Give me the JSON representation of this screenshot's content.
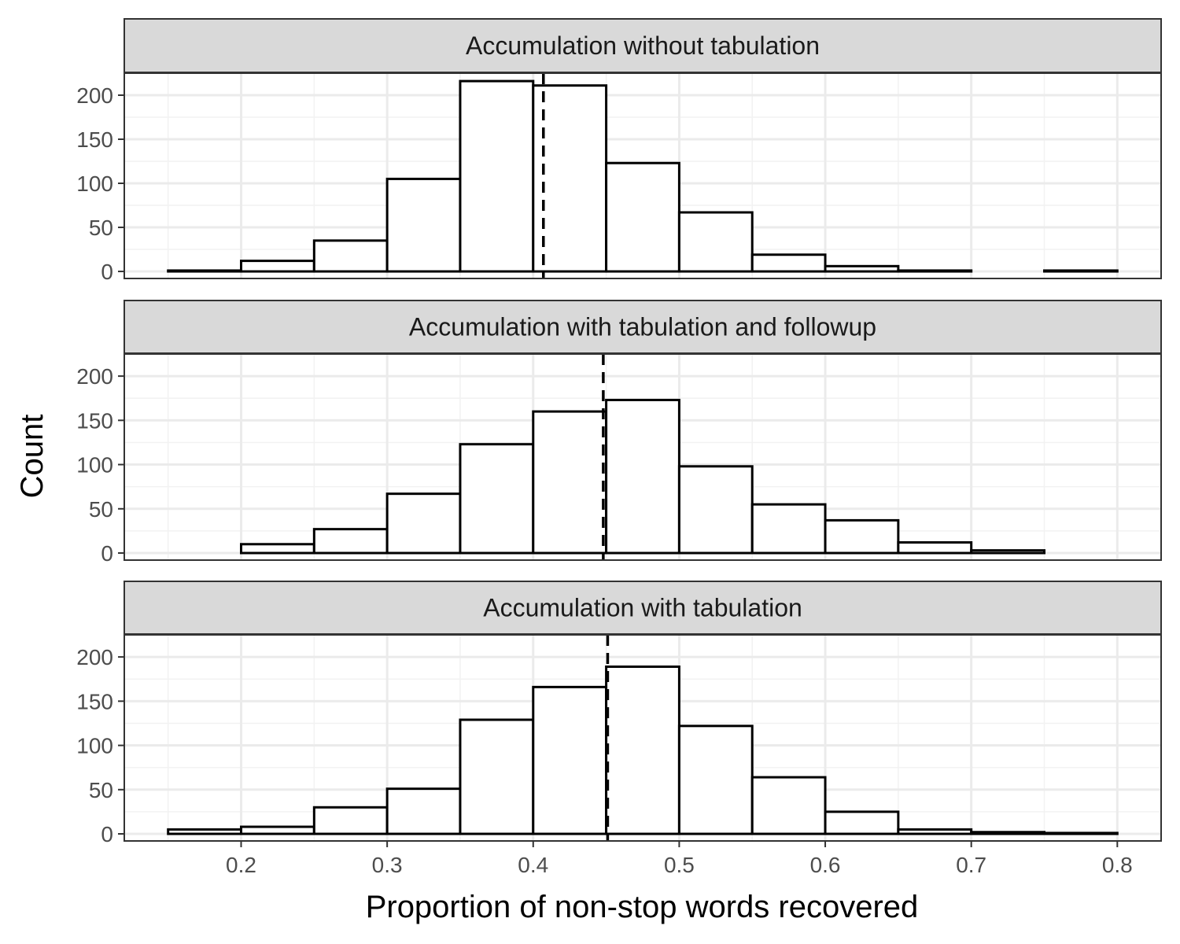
{
  "chart_data": {
    "type": "bar",
    "subtype": "faceted-histogram",
    "xlabel": "Proportion of non-stop words recovered",
    "ylabel": "Count",
    "xlim": [
      0.12,
      0.83
    ],
    "ylim": [
      -8,
      225
    ],
    "x_ticks": [
      0.2,
      0.3,
      0.4,
      0.5,
      0.6,
      0.7,
      0.8
    ],
    "x_tick_labels": [
      "0.2",
      "0.3",
      "0.4",
      "0.5",
      "0.6",
      "0.7",
      "0.8"
    ],
    "y_ticks": [
      0,
      50,
      100,
      150,
      200
    ],
    "y_tick_labels": [
      "0",
      "50",
      "100",
      "150",
      "200"
    ],
    "bin_edges": [
      0.15,
      0.2,
      0.25,
      0.3,
      0.35,
      0.4,
      0.45,
      0.5,
      0.55,
      0.6,
      0.65,
      0.7,
      0.75,
      0.8
    ],
    "grid": true,
    "panels": [
      {
        "title": "Accumulation without tabulation",
        "counts": [
          1,
          12,
          35,
          105,
          216,
          211,
          123,
          67,
          19,
          6,
          1,
          0,
          1
        ],
        "mean": 0.407
      },
      {
        "title": "Accumulation with tabulation and followup",
        "counts": [
          0,
          10,
          27,
          67,
          123,
          160,
          173,
          98,
          55,
          37,
          12,
          3,
          0
        ],
        "mean": 0.448
      },
      {
        "title": "Accumulation with tabulation",
        "counts": [
          5,
          8,
          30,
          51,
          129,
          166,
          189,
          122,
          64,
          25,
          5,
          2,
          1
        ],
        "mean": 0.451
      }
    ]
  }
}
